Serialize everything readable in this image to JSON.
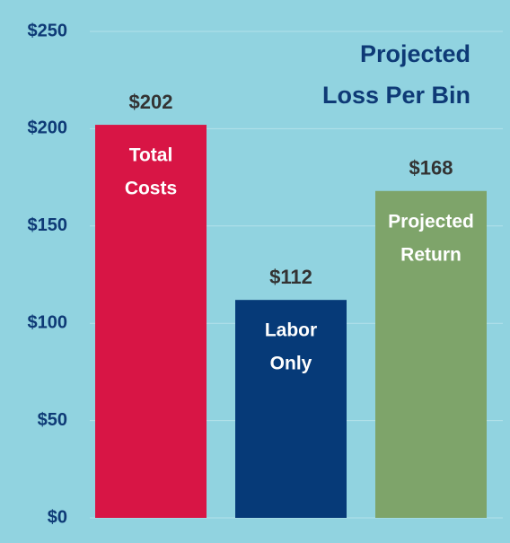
{
  "chart_data": {
    "type": "bar",
    "title": [
      "Projected",
      "Loss Per Bin"
    ],
    "categories": [
      [
        "Total",
        "Costs"
      ],
      [
        "Labor",
        "Only"
      ],
      [
        "Projected",
        "Return"
      ]
    ],
    "values": [
      202,
      112,
      168
    ],
    "value_labels": [
      "$202",
      "$112",
      "$168"
    ],
    "colors": [
      "#d81545",
      "#063a78",
      "#7ea46a"
    ],
    "ylim": [
      0,
      250
    ],
    "yticks": [
      {
        "value": 0,
        "label": "$0"
      },
      {
        "value": 50,
        "label": "$50"
      },
      {
        "value": 100,
        "label": "$100"
      },
      {
        "value": 150,
        "label": "$150"
      },
      {
        "value": 200,
        "label": "$200"
      },
      {
        "value": 250,
        "label": "$250"
      }
    ],
    "grid": true
  }
}
